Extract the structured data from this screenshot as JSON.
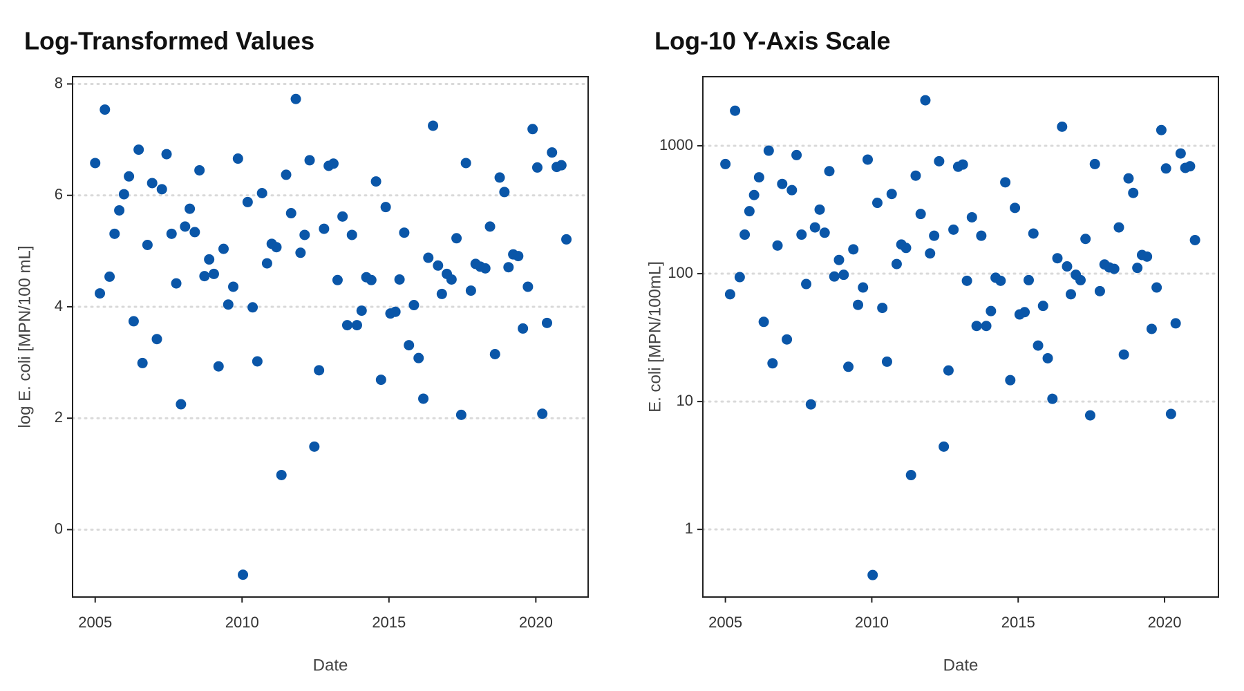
{
  "chart_data": [
    {
      "type": "scatter",
      "title": "Log-Transformed Values",
      "xlabel": "Date",
      "ylabel": "log E. coli [MPN/100 mL]",
      "color": "#0a56a8",
      "grid": true,
      "ylog": false,
      "xlim": [
        2004.23,
        2021.78
      ],
      "xticks": [
        2005,
        2010,
        2015,
        2020
      ],
      "ylim": [
        -1.21,
        8.13
      ],
      "yticks": [
        0,
        2,
        4,
        6,
        8
      ],
      "x": [
        2005.0,
        2005.16,
        2005.33,
        2005.49,
        2005.66,
        2005.82,
        2005.98,
        2006.15,
        2006.31,
        2006.48,
        2006.61,
        2006.78,
        2006.94,
        2007.1,
        2007.27,
        2007.43,
        2007.6,
        2007.76,
        2007.92,
        2008.06,
        2008.22,
        2008.39,
        2008.55,
        2008.72,
        2008.88,
        2009.04,
        2009.2,
        2009.37,
        2009.53,
        2009.7,
        2009.86,
        2010.03,
        2010.19,
        2010.36,
        2010.52,
        2010.68,
        2010.85,
        2011.01,
        2011.17,
        2011.34,
        2011.5,
        2011.67,
        2011.83,
        2011.99,
        2012.13,
        2012.3,
        2012.46,
        2012.62,
        2012.79,
        2012.95,
        2013.11,
        2013.25,
        2013.42,
        2013.58,
        2013.74,
        2013.91,
        2014.07,
        2014.23,
        2014.4,
        2014.56,
        2014.73,
        2014.89,
        2015.05,
        2015.22,
        2015.36,
        2015.52,
        2015.68,
        2015.85,
        2016.01,
        2016.17,
        2016.34,
        2016.5,
        2016.67,
        2016.8,
        2016.97,
        2017.13,
        2017.3,
        2017.46,
        2017.62,
        2017.79,
        2017.95,
        2018.11,
        2018.28,
        2018.44,
        2018.61,
        2018.77,
        2018.93,
        2019.07,
        2019.23,
        2019.4,
        2019.56,
        2019.73,
        2019.89,
        2020.05,
        2020.22,
        2020.38,
        2020.55,
        2020.71,
        2020.87,
        2021.04
      ],
      "values": [
        6.58,
        4.24,
        7.54,
        4.54,
        5.31,
        5.73,
        6.02,
        6.34,
        3.74,
        6.82,
        2.99,
        5.11,
        6.22,
        3.42,
        6.11,
        6.74,
        5.31,
        4.42,
        2.25,
        5.44,
        5.76,
        5.34,
        6.45,
        4.55,
        4.85,
        4.59,
        2.93,
        5.04,
        4.04,
        4.36,
        6.66,
        -0.81,
        5.88,
        3.99,
        3.02,
        6.04,
        4.78,
        5.13,
        5.07,
        0.98,
        6.37,
        5.68,
        7.73,
        4.97,
        5.29,
        6.63,
        1.49,
        2.86,
        5.4,
        6.53,
        6.57,
        4.48,
        5.62,
        3.67,
        5.29,
        3.67,
        3.93,
        4.53,
        4.48,
        6.25,
        2.69,
        5.79,
        3.88,
        3.91,
        4.49,
        5.33,
        3.31,
        4.03,
        3.08,
        2.35,
        4.88,
        7.25,
        4.74,
        4.23,
        4.59,
        4.49,
        5.23,
        2.06,
        6.58,
        4.29,
        4.77,
        4.72,
        4.69,
        5.44,
        3.15,
        6.32,
        6.06,
        4.71,
        4.94,
        4.91,
        3.61,
        4.36,
        7.19,
        6.5,
        2.08,
        3.71,
        6.77,
        6.51,
        6.54,
        5.21
      ]
    },
    {
      "type": "scatter",
      "title": "Log-10 Y-Axis Scale",
      "xlabel": "Date",
      "ylabel": "E. coli [MPN/100mL]",
      "color": "#0a56a8",
      "grid": true,
      "ylog": true,
      "xlim": [
        2004.23,
        2021.84
      ],
      "xticks": [
        2005,
        2010,
        2015,
        2020
      ],
      "ylim": [
        0.296,
        3470
      ],
      "yticks": [
        1,
        10,
        100,
        1000
      ],
      "x": [
        2005.0,
        2005.16,
        2005.33,
        2005.49,
        2005.66,
        2005.82,
        2005.98,
        2006.15,
        2006.31,
        2006.48,
        2006.61,
        2006.78,
        2006.94,
        2007.1,
        2007.27,
        2007.43,
        2007.6,
        2007.76,
        2007.92,
        2008.06,
        2008.22,
        2008.39,
        2008.55,
        2008.72,
        2008.88,
        2009.04,
        2009.2,
        2009.37,
        2009.53,
        2009.7,
        2009.86,
        2010.03,
        2010.19,
        2010.36,
        2010.52,
        2010.68,
        2010.85,
        2011.01,
        2011.17,
        2011.34,
        2011.5,
        2011.67,
        2011.83,
        2011.99,
        2012.13,
        2012.3,
        2012.46,
        2012.62,
        2012.79,
        2012.95,
        2013.11,
        2013.25,
        2013.42,
        2013.58,
        2013.74,
        2013.91,
        2014.07,
        2014.23,
        2014.4,
        2014.56,
        2014.73,
        2014.89,
        2015.05,
        2015.22,
        2015.36,
        2015.52,
        2015.68,
        2015.85,
        2016.01,
        2016.17,
        2016.34,
        2016.5,
        2016.67,
        2016.8,
        2016.97,
        2017.13,
        2017.3,
        2017.46,
        2017.62,
        2017.79,
        2017.95,
        2018.11,
        2018.28,
        2018.44,
        2018.61,
        2018.77,
        2018.93,
        2019.07,
        2019.23,
        2019.4,
        2019.56,
        2019.73,
        2019.89,
        2020.05,
        2020.22,
        2020.38,
        2020.55,
        2020.71,
        2020.87,
        2021.04
      ],
      "values": [
        720,
        69,
        1880,
        94,
        202,
        308,
        412,
        567,
        42,
        916,
        19.9,
        166,
        503,
        30.6,
        450,
        846,
        202,
        83,
        9.5,
        230,
        317,
        209,
        633,
        95,
        128,
        98,
        18.7,
        155,
        57,
        78,
        780,
        0.44,
        358,
        54,
        20.5,
        420,
        119,
        169,
        159,
        2.66,
        584,
        293,
        2270,
        144,
        198,
        757,
        4.44,
        17.5,
        221,
        686,
        714,
        88,
        276,
        39,
        198,
        39,
        51,
        93,
        88,
        518,
        14.7,
        327,
        48,
        50,
        89,
        206,
        27.4,
        56,
        21.8,
        10.5,
        132,
        1410,
        114,
        69,
        98,
        89,
        187,
        7.8,
        720,
        73,
        118,
        112,
        109,
        230,
        23.3,
        556,
        428,
        111,
        140,
        136,
        37,
        78,
        1327,
        665,
        8.0,
        40.9,
        871,
        672,
        692,
        183
      ]
    }
  ]
}
